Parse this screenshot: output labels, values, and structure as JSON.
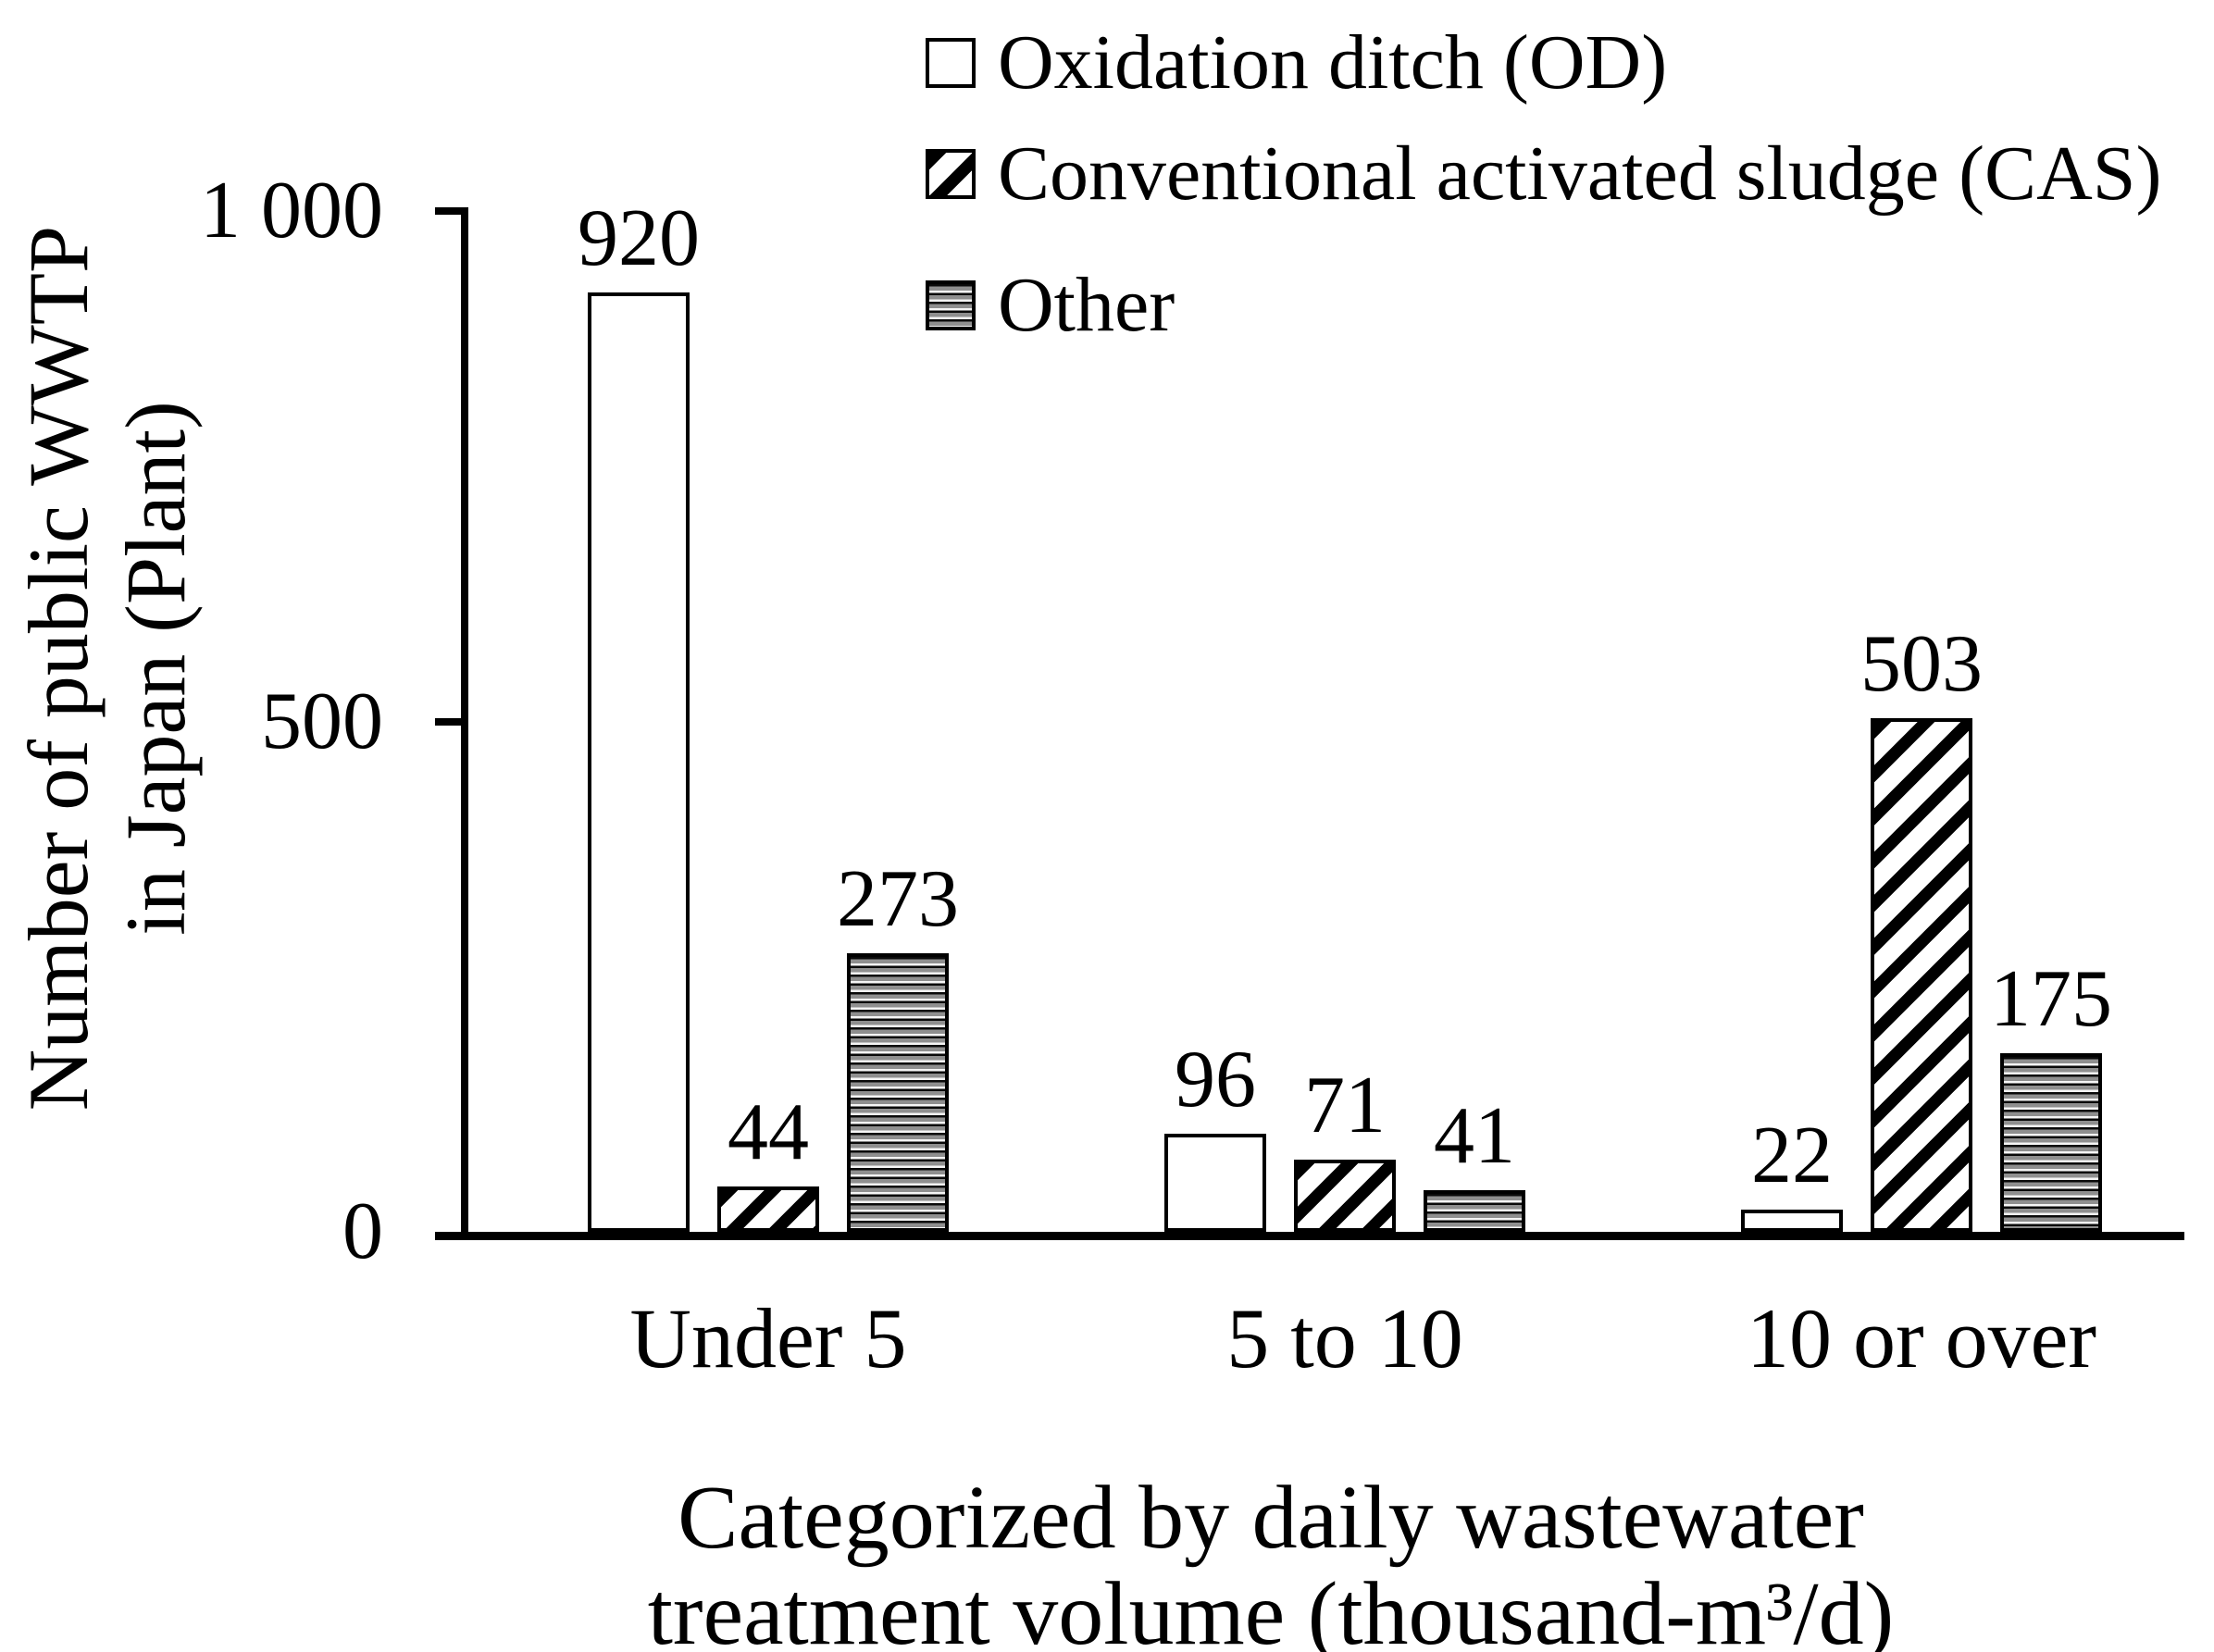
{
  "chart_data": {
    "type": "bar",
    "title": "",
    "categories": [
      "Under 5",
      "5 to 10",
      "10 or over"
    ],
    "series": [
      {
        "name": "Oxidation ditch (OD)",
        "pattern": "plain-white",
        "values": [
          920,
          96,
          22
        ]
      },
      {
        "name": "Conventional activated sludge (CAS)",
        "pattern": "diagonal-hatch",
        "values": [
          44,
          71,
          503
        ]
      },
      {
        "name": "Other",
        "pattern": "horizontal-stripes",
        "values": [
          273,
          41,
          175
        ]
      }
    ],
    "value_labels": [
      [
        "920",
        "96",
        "22"
      ],
      [
        "44",
        "71",
        "503"
      ],
      [
        "273",
        "41",
        "175"
      ]
    ],
    "ylabel_lines": [
      "Number of public WWTP",
      "in Japan (Plant)"
    ],
    "xlabel_lines": [
      "Categorized by daily wastewater",
      "treatment volume (thousand-m³/d)"
    ],
    "yticks": [
      {
        "value": 0,
        "label": "0"
      },
      {
        "value": 500,
        "label": "500"
      },
      {
        "value": 1000,
        "label": "1 000"
      }
    ],
    "ylim": [
      0,
      1000
    ],
    "grid": false,
    "legend_position": "top-right",
    "colors": {
      "ink": "#000000",
      "background": "#ffffff"
    }
  }
}
